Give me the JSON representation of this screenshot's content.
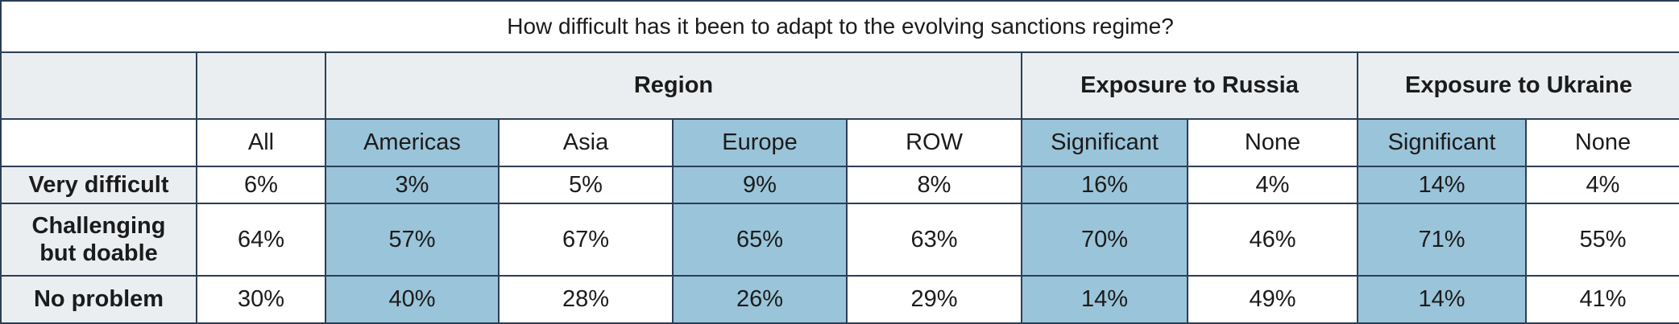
{
  "chart_data": {
    "type": "table",
    "title": "How difficult has it been to adapt to the evolving sanctions regime?",
    "groups": [
      {
        "label": "",
        "span": 1
      },
      {
        "label": "Region",
        "span": 4
      },
      {
        "label": "Exposure to Russia",
        "span": 2
      },
      {
        "label": "Exposure to Ukraine",
        "span": 2
      }
    ],
    "columns": [
      "All",
      "Americas",
      "Asia",
      "Europe",
      "ROW",
      "Significant",
      "None",
      "Significant",
      "None"
    ],
    "highlighted_columns": [
      1,
      3,
      5,
      7
    ],
    "rows": [
      {
        "label": "Very difficult",
        "values": [
          "6%",
          "3%",
          "5%",
          "9%",
          "8%",
          "16%",
          "4%",
          "14%",
          "4%"
        ]
      },
      {
        "label": "Challenging but doable",
        "values": [
          "64%",
          "57%",
          "67%",
          "65%",
          "63%",
          "70%",
          "46%",
          "71%",
          "55%"
        ]
      },
      {
        "label": "No problem",
        "values": [
          "30%",
          "40%",
          "28%",
          "26%",
          "29%",
          "14%",
          "49%",
          "14%",
          "41%"
        ]
      }
    ],
    "colors": {
      "highlight": "#9ac4d9",
      "header_bg": "#eaeef1",
      "border": "#2c3e57"
    }
  }
}
